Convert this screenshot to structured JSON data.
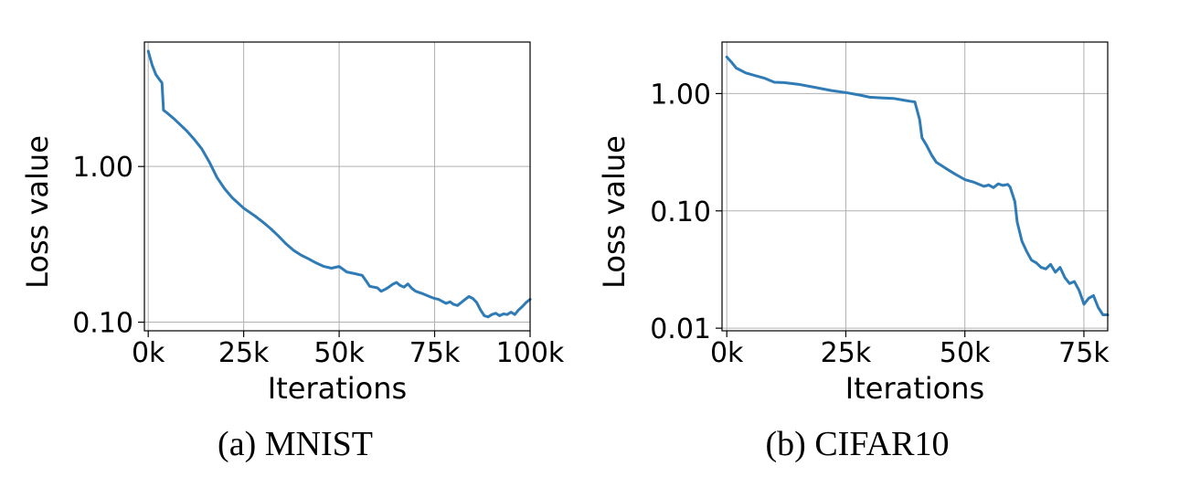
{
  "colors": {
    "series": "#2f7bb6"
  },
  "chart_data": [
    {
      "type": "line",
      "caption": "(a) MNIST",
      "xlabel": "Iterations",
      "ylabel": "Loss value",
      "yscale": "log",
      "grid": true,
      "xlim": [
        -1000,
        100000
      ],
      "ylim": [
        0.088,
        6.3
      ],
      "xticks": [
        {
          "value": 0,
          "label": "0k"
        },
        {
          "value": 25000,
          "label": "25k"
        },
        {
          "value": 50000,
          "label": "50k"
        },
        {
          "value": 75000,
          "label": "75k"
        },
        {
          "value": 100000,
          "label": "100k"
        }
      ],
      "yticks": [
        {
          "value": 1.0,
          "label": "1.00"
        },
        {
          "value": 0.1,
          "label": "0.10"
        }
      ],
      "series": [
        {
          "x": [
            0,
            1000,
            2000,
            3000,
            3600,
            4000,
            5000,
            7000,
            10000,
            12000,
            14000,
            16000,
            18000,
            20000,
            22000,
            25000,
            28000,
            30000,
            32000,
            34000,
            36000,
            38000,
            40000,
            42000,
            44000,
            46000,
            48000,
            50000,
            52000,
            54000,
            56000,
            57000,
            58000,
            60000,
            61000,
            62000,
            63000,
            64000,
            65000,
            66000,
            67000,
            68000,
            69000,
            70000,
            72000,
            74000,
            75000,
            76000,
            77000,
            78000,
            79000,
            80000,
            81000,
            82000,
            83000,
            84000,
            85000,
            86000,
            87000,
            88000,
            89000,
            90000,
            91000,
            92000,
            93000,
            94000,
            95000,
            96000,
            97000,
            98000,
            99000,
            100000
          ],
          "y": [
            5.5,
            4.5,
            3.9,
            3.6,
            3.45,
            2.3,
            2.2,
            2.0,
            1.7,
            1.5,
            1.3,
            1.07,
            0.85,
            0.72,
            0.63,
            0.54,
            0.48,
            0.44,
            0.4,
            0.36,
            0.32,
            0.29,
            0.27,
            0.255,
            0.24,
            0.228,
            0.222,
            0.228,
            0.21,
            0.205,
            0.2,
            0.185,
            0.17,
            0.166,
            0.158,
            0.162,
            0.168,
            0.175,
            0.18,
            0.172,
            0.168,
            0.176,
            0.165,
            0.158,
            0.152,
            0.145,
            0.142,
            0.14,
            0.136,
            0.132,
            0.135,
            0.13,
            0.128,
            0.134,
            0.14,
            0.146,
            0.142,
            0.134,
            0.12,
            0.11,
            0.108,
            0.112,
            0.114,
            0.11,
            0.113,
            0.112,
            0.116,
            0.112,
            0.12,
            0.126,
            0.134,
            0.14
          ]
        }
      ]
    },
    {
      "type": "line",
      "caption": "(b) CIFAR10",
      "xlabel": "Iterations",
      "ylabel": "Loss value",
      "yscale": "log",
      "grid": true,
      "xlim": [
        -1000,
        80000
      ],
      "ylim": [
        0.0095,
        2.75
      ],
      "xticks": [
        {
          "value": 0,
          "label": "0k"
        },
        {
          "value": 25000,
          "label": "25k"
        },
        {
          "value": 50000,
          "label": "50k"
        },
        {
          "value": 75000,
          "label": "75k"
        }
      ],
      "yticks": [
        {
          "value": 1.0,
          "label": "1.00"
        },
        {
          "value": 0.1,
          "label": "0.10"
        },
        {
          "value": 0.01,
          "label": "0.01"
        }
      ],
      "series": [
        {
          "x": [
            0,
            1000,
            2000,
            4000,
            6000,
            8000,
            10000,
            12000,
            15000,
            18000,
            20000,
            22000,
            25000,
            28000,
            30000,
            32000,
            35000,
            37000,
            38500,
            39500,
            40500,
            41000,
            42000,
            43000,
            44000,
            46000,
            48000,
            50000,
            52000,
            53000,
            54000,
            55000,
            56000,
            57000,
            58000,
            59000,
            59500,
            60500,
            61000,
            62000,
            63000,
            64000,
            65000,
            66000,
            67000,
            68000,
            69000,
            70000,
            71000,
            72000,
            73000,
            74000,
            75000,
            76000,
            77000,
            78000,
            79000,
            80000
          ],
          "y": [
            2.05,
            1.85,
            1.65,
            1.5,
            1.42,
            1.35,
            1.25,
            1.24,
            1.2,
            1.14,
            1.1,
            1.06,
            1.02,
            0.97,
            0.93,
            0.92,
            0.91,
            0.88,
            0.86,
            0.85,
            0.6,
            0.42,
            0.36,
            0.3,
            0.26,
            0.23,
            0.205,
            0.185,
            0.175,
            0.168,
            0.162,
            0.166,
            0.158,
            0.17,
            0.165,
            0.168,
            0.16,
            0.12,
            0.08,
            0.055,
            0.045,
            0.038,
            0.036,
            0.033,
            0.032,
            0.035,
            0.03,
            0.033,
            0.027,
            0.024,
            0.025,
            0.021,
            0.016,
            0.018,
            0.019,
            0.015,
            0.013,
            0.013
          ]
        }
      ]
    }
  ]
}
